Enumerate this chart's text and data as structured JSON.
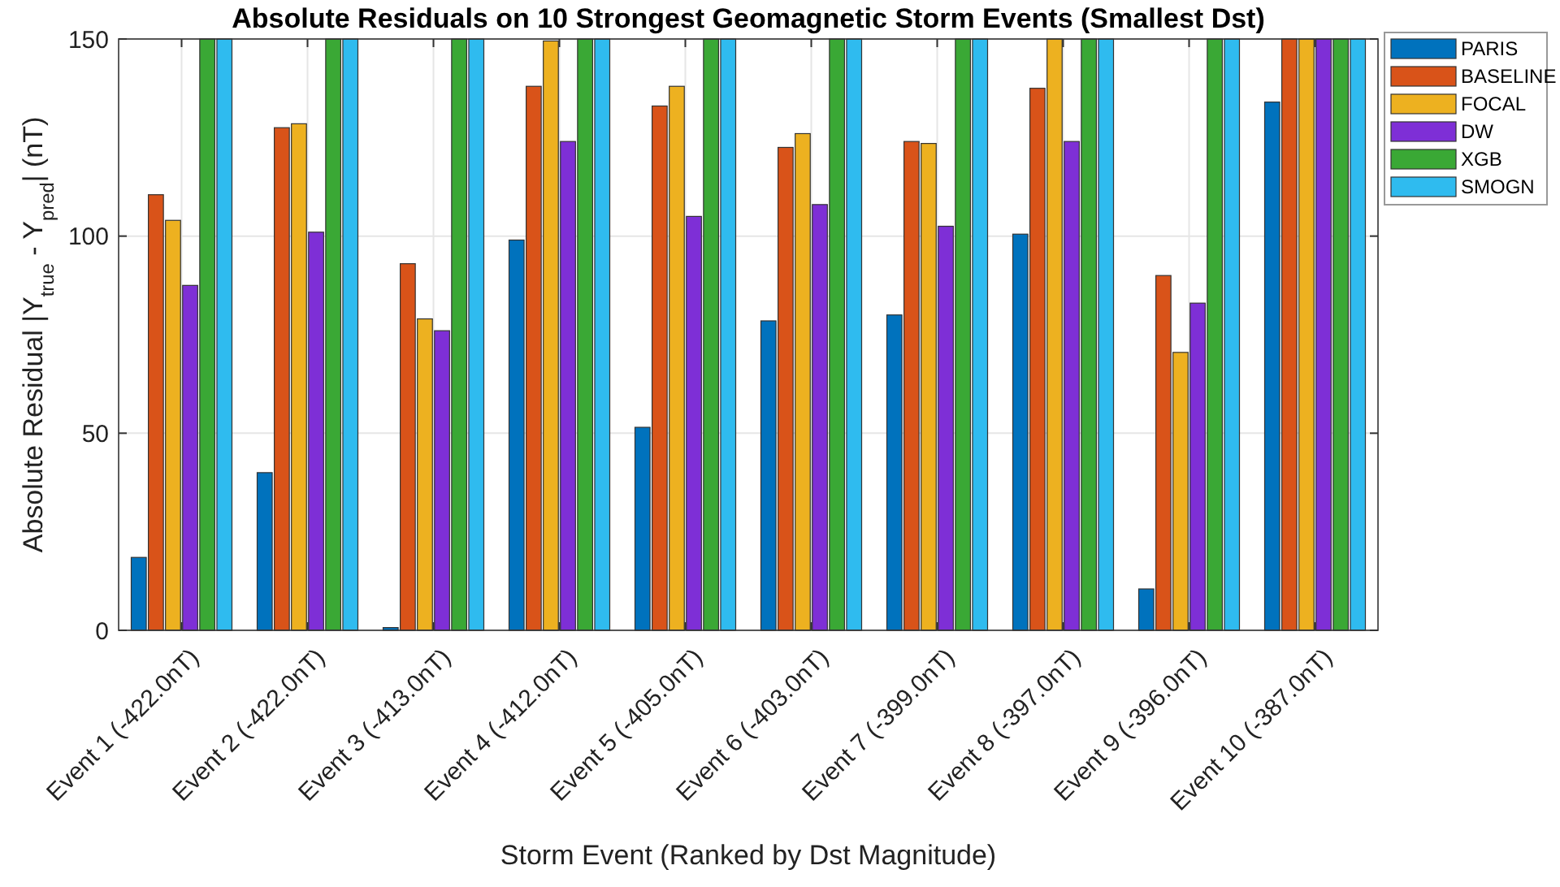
{
  "chart_data": {
    "type": "bar",
    "title": "Absolute Residuals on 10 Strongest Geomagnetic Storm Events (Smallest Dst)",
    "xlabel": "Storm Event (Ranked by Dst Magnitude)",
    "ylabel": "Absolute  Residual  |Y$_{true}$  -  Y$_{pred}$|  (nT)",
    "categories": [
      "Event 1 (-422.0nT)",
      "Event 2 (-422.0nT)",
      "Event 3 (-413.0nT)",
      "Event 4 (-412.0nT)",
      "Event 5 (-405.0nT)",
      "Event 6 (-403.0nT)",
      "Event 7 (-399.0nT)",
      "Event 8 (-397.0nT)",
      "Event 9 (-396.0nT)",
      "Event 10 (-387.0nT)"
    ],
    "series": [
      {
        "name": "PARIS",
        "color": "#0072bd",
        "values": [
          18.5,
          40,
          0.7,
          99,
          51.5,
          78.5,
          80,
          100.5,
          10.5,
          134
        ]
      },
      {
        "name": "BASELINE",
        "color": "#d95319",
        "values": [
          110.5,
          127.5,
          93,
          138,
          133,
          122.5,
          124,
          137.5,
          90,
          150
        ]
      },
      {
        "name": "FOCAL",
        "color": "#edb120",
        "values": [
          104,
          128.5,
          79,
          149.5,
          138,
          126,
          123.5,
          150,
          70.5,
          150
        ]
      },
      {
        "name": "DW",
        "color": "#7e2fd6",
        "values": [
          87.5,
          101,
          76,
          124,
          105,
          108,
          102.5,
          124,
          83,
          150
        ]
      },
      {
        "name": "XGB",
        "color": "#3aa835",
        "values": [
          150,
          150,
          150,
          150,
          150,
          150,
          150,
          150,
          150,
          150
        ]
      },
      {
        "name": "SMOGN",
        "color": "#2fbbef",
        "values": [
          150,
          150,
          150,
          150,
          150,
          150,
          150,
          150,
          150,
          150
        ]
      }
    ],
    "ylim": [
      0,
      150
    ],
    "yticks": [
      0,
      50,
      100,
      150
    ],
    "grid": true,
    "legend": "top right"
  }
}
